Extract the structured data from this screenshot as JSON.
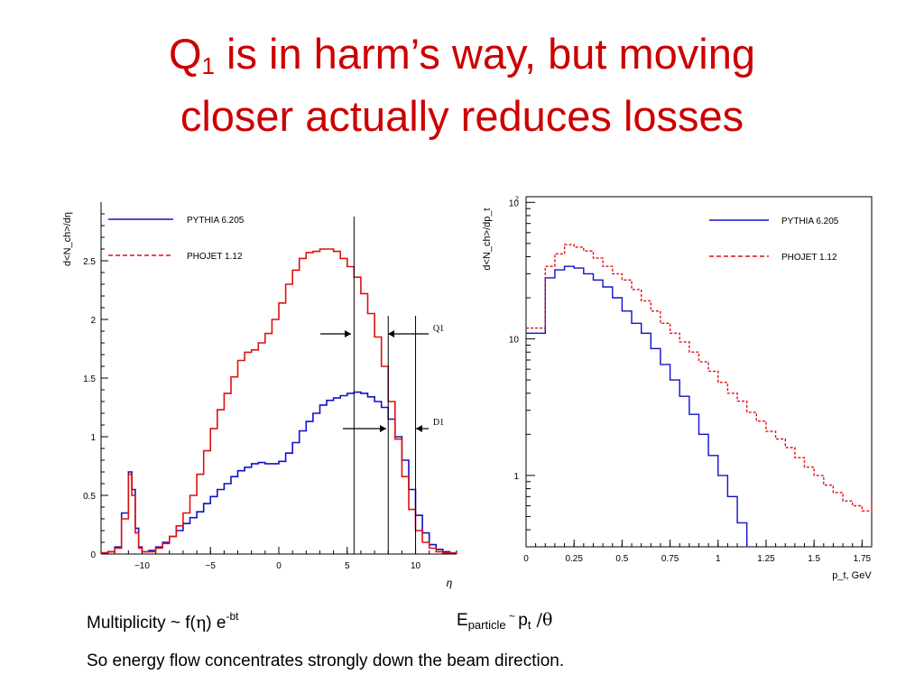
{
  "slide": {
    "title_pre": "Q",
    "title_sub": "1",
    "title_line1_rest": " is in harm’s way, but moving",
    "title_line2": "closer actually reduces losses",
    "caption_mult_pre": "Multiplicity ~ f(",
    "caption_mult_eta": "η",
    "caption_mult_post": ") e",
    "caption_mult_sup": "-bt",
    "caption_e_main": "E",
    "caption_e_sub": "particle",
    "caption_e_tilde": " ~ ",
    "caption_e_p": "p",
    "caption_e_psub": "t",
    "caption_e_rest": " /θ",
    "caption_bottom": "So energy flow concentrates strongly down the beam direction.",
    "colors": {
      "title": "#cc0000",
      "pythia": "#1010cc",
      "phojet": "#dd1111"
    }
  },
  "chart_data": [
    {
      "type": "line",
      "ylabel": "d<N_ch>/dη",
      "xlabel": "η",
      "xlim": [
        -13,
        13
      ],
      "ylim": [
        0,
        3
      ],
      "x_ticks": [
        "−10",
        "−5",
        "0",
        "5",
        "10"
      ],
      "x_tick_values": [
        -10,
        -5,
        0,
        5,
        10
      ],
      "y_ticks": [
        "0",
        "0.5",
        "1",
        "1.5",
        "2",
        "2.5"
      ],
      "y_tick_values": [
        0,
        0.5,
        1,
        1.5,
        2,
        2.5
      ],
      "vlines": [
        5.5,
        8.0,
        10.0
      ],
      "annotations": {
        "q1": "Q1",
        "d1": "D1"
      },
      "legend": "top-left",
      "series": [
        {
          "name": "PYTHIA 6.205",
          "style": "solid",
          "color": "#1010cc",
          "x": [
            -13,
            -12.5,
            -12,
            -11.5,
            -11,
            -10.75,
            -10.5,
            -10.25,
            -10,
            -9.5,
            -9,
            -8.5,
            -8,
            -7.5,
            -7,
            -6.5,
            -6,
            -5.5,
            -5,
            -4.5,
            -4,
            -3.5,
            -3,
            -2.5,
            -2,
            -1.5,
            -1,
            -0.5,
            0,
            0.5,
            1,
            1.5,
            2,
            2.5,
            3,
            3.5,
            4,
            4.5,
            5,
            5.5,
            6,
            6.5,
            7,
            7.5,
            8,
            8.5,
            9,
            9.5,
            10,
            10.5,
            11,
            11.5,
            12,
            12.5,
            13
          ],
          "y": [
            0.01,
            0.02,
            0.06,
            0.35,
            0.7,
            0.55,
            0.22,
            0.06,
            0.02,
            0.03,
            0.06,
            0.1,
            0.15,
            0.2,
            0.26,
            0.31,
            0.36,
            0.43,
            0.49,
            0.55,
            0.6,
            0.66,
            0.71,
            0.74,
            0.77,
            0.78,
            0.77,
            0.77,
            0.79,
            0.86,
            0.95,
            1.05,
            1.13,
            1.2,
            1.27,
            1.31,
            1.33,
            1.35,
            1.37,
            1.38,
            1.37,
            1.34,
            1.3,
            1.25,
            1.15,
            1.0,
            0.8,
            0.55,
            0.33,
            0.18,
            0.08,
            0.04,
            0.02,
            0.01,
            0.01
          ]
        },
        {
          "name": "PHOJET 1.12",
          "style": "dashed",
          "color": "#dd1111",
          "x": [
            -13,
            -12.5,
            -12,
            -11.5,
            -11,
            -10.75,
            -10.5,
            -10.25,
            -10,
            -9.5,
            -9,
            -8.5,
            -8,
            -7.5,
            -7,
            -6.5,
            -6,
            -5.5,
            -5,
            -4.5,
            -4,
            -3.5,
            -3,
            -2.5,
            -2,
            -1.5,
            -1,
            -0.5,
            0,
            0.5,
            1,
            1.5,
            2,
            2.5,
            3,
            3.5,
            4,
            4.5,
            5,
            5.5,
            6,
            6.5,
            7,
            7.5,
            8,
            8.5,
            9,
            9.5,
            10,
            10.5,
            11,
            11.5,
            12,
            12.5,
            13
          ],
          "y": [
            0.01,
            0.02,
            0.05,
            0.3,
            0.68,
            0.5,
            0.18,
            0.05,
            0.02,
            0.02,
            0.05,
            0.09,
            0.15,
            0.24,
            0.35,
            0.5,
            0.68,
            0.88,
            1.07,
            1.23,
            1.37,
            1.51,
            1.65,
            1.72,
            1.74,
            1.8,
            1.88,
            2.0,
            2.14,
            2.3,
            2.42,
            2.52,
            2.57,
            2.58,
            2.6,
            2.6,
            2.58,
            2.52,
            2.45,
            2.36,
            2.22,
            2.05,
            1.85,
            1.6,
            1.3,
            0.98,
            0.66,
            0.38,
            0.2,
            0.1,
            0.05,
            0.02,
            0.01,
            0.01,
            0.01
          ]
        }
      ]
    },
    {
      "type": "line",
      "ylabel": "d<N_ch>/dp_t",
      "xlabel": "p_t, GeV",
      "xlim": [
        0,
        1.8
      ],
      "ylim": [
        0.3,
        110
      ],
      "yscale": "log",
      "x_ticks": [
        "0",
        "0.25",
        "0.5",
        "0.75",
        "1",
        "1.25",
        "1.5",
        "1.75"
      ],
      "x_tick_values": [
        0,
        0.25,
        0.5,
        0.75,
        1,
        1.25,
        1.5,
        1.75
      ],
      "y_ticks": [
        "1",
        "10",
        "10"
      ],
      "y_tick_sup": "2",
      "y_tick_values": [
        1,
        10,
        100
      ],
      "legend": "top-right",
      "series": [
        {
          "name": "PYTHIA 6.205",
          "style": "solid",
          "color": "#1010cc",
          "x": [
            0,
            0.05,
            0.1,
            0.15,
            0.2,
            0.25,
            0.3,
            0.35,
            0.4,
            0.45,
            0.5,
            0.55,
            0.6,
            0.65,
            0.7,
            0.75,
            0.8,
            0.85,
            0.9,
            0.95,
            1.0,
            1.05,
            1.1,
            1.15
          ],
          "y": [
            11,
            11,
            28,
            32,
            34,
            33,
            30,
            27,
            24,
            20,
            16,
            13,
            11,
            8.5,
            6.5,
            5,
            3.8,
            2.8,
            2.0,
            1.4,
            1.0,
            0.7,
            0.45,
            0.3
          ]
        },
        {
          "name": "PHOJET 1.12",
          "style": "dashed",
          "color": "#dd1111",
          "x": [
            0,
            0.05,
            0.1,
            0.15,
            0.2,
            0.25,
            0.3,
            0.35,
            0.4,
            0.45,
            0.5,
            0.55,
            0.6,
            0.65,
            0.7,
            0.75,
            0.8,
            0.85,
            0.9,
            0.95,
            1.0,
            1.05,
            1.1,
            1.15,
            1.2,
            1.25,
            1.3,
            1.35,
            1.4,
            1.45,
            1.5,
            1.55,
            1.6,
            1.65,
            1.7,
            1.75,
            1.8
          ],
          "y": [
            12,
            12,
            34,
            42,
            49,
            47,
            44,
            39,
            34,
            30,
            27,
            23,
            19,
            16,
            13,
            11,
            9.5,
            8,
            6.8,
            5.8,
            4.8,
            4.0,
            3.5,
            2.9,
            2.5,
            2.1,
            1.85,
            1.6,
            1.35,
            1.15,
            1.0,
            0.85,
            0.75,
            0.65,
            0.6,
            0.55,
            0.7
          ]
        }
      ]
    }
  ]
}
